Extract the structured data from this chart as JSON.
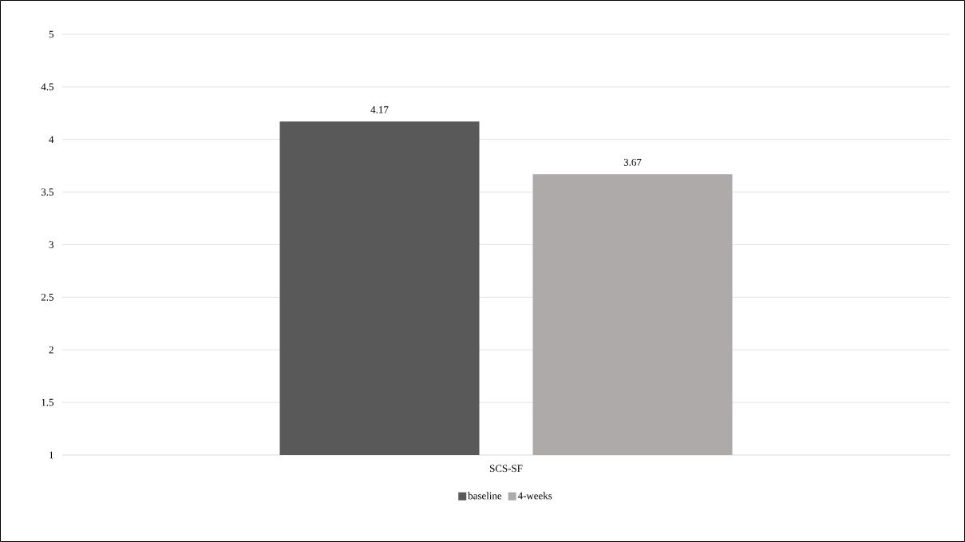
{
  "chart_data": {
    "type": "bar",
    "categories": [
      "SCS-SF"
    ],
    "series": [
      {
        "name": "baseline",
        "color": "#595959",
        "values": [
          4.17
        ]
      },
      {
        "name": "4-weeks",
        "color": "#aeaaaa",
        "values": [
          3.67
        ]
      }
    ],
    "ylim": [
      1,
      5
    ],
    "yticks": [
      1,
      1.5,
      2,
      2.5,
      3,
      3.5,
      4,
      4.5,
      5
    ],
    "grid": "y",
    "legend": "bottom",
    "data_labels": true
  }
}
